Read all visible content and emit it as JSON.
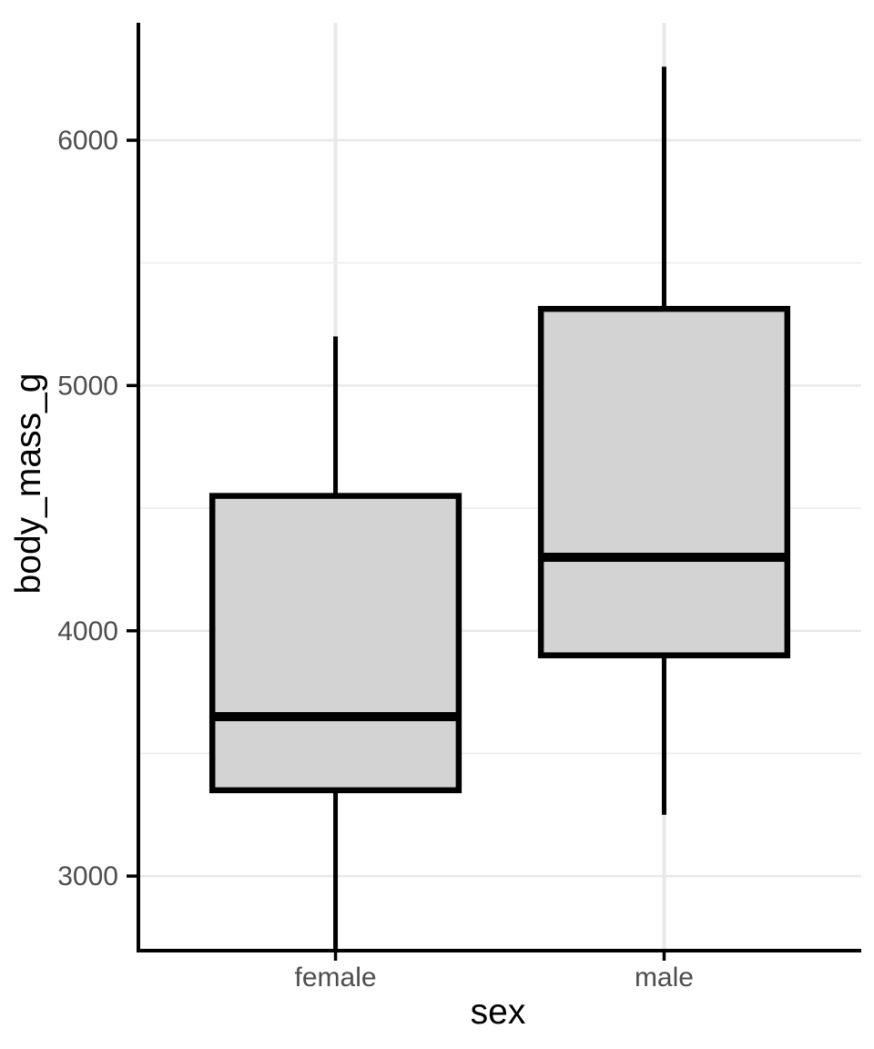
{
  "chart_data": {
    "type": "boxplot",
    "title": "",
    "xlabel": "sex",
    "ylabel": "body_mass_g",
    "categories": [
      "female",
      "male"
    ],
    "series": [
      {
        "category": "female",
        "min": 2700,
        "q1": 3350,
        "median": 3650,
        "q3": 4550,
        "max": 5200
      },
      {
        "category": "male",
        "min": 3250,
        "q1": 3900,
        "median": 4300,
        "q3": 5312.5,
        "max": 6300
      }
    ],
    "y_ticks": [
      3000,
      4000,
      5000,
      6000
    ],
    "y_tick_labels": [
      "3000",
      "4000",
      "5000",
      "6000"
    ],
    "y_minor_ticks": [
      3500,
      4500,
      5500
    ],
    "ylim": [
      2696,
      6479
    ],
    "grid": true,
    "legend": "none",
    "colors": {
      "box_fill": "#d3d3d3",
      "box_stroke": "#000000",
      "axis_line": "#000000",
      "grid_major": "#e8e8e8",
      "grid_minor": "#efefef",
      "grid_vertical": "#e8e8e8",
      "tick_label": "#4d4d4d",
      "axis_title": "#000000"
    }
  }
}
